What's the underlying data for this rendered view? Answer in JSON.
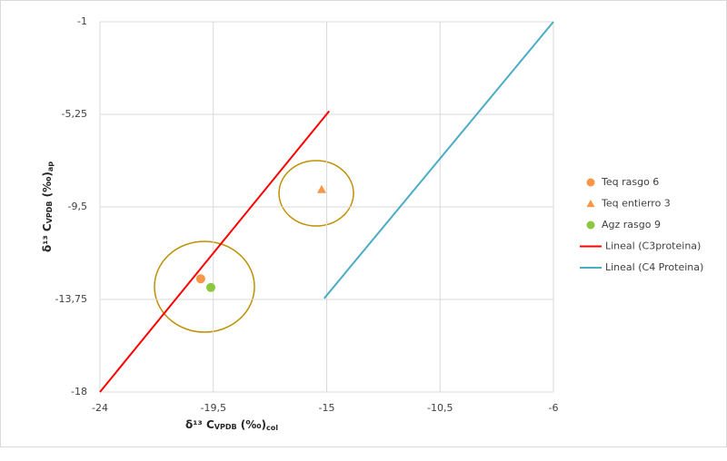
{
  "chart_data": {
    "type": "scatter",
    "x_label": {
      "main": "δ¹³ C",
      "sub1": "VPDB",
      "mid": " (‰)",
      "sub2": "col"
    },
    "y_label": {
      "main": "δ¹³ C",
      "sub1": "VPDB",
      "mid": " (‰)",
      "sub2": "ap"
    },
    "xlim": [
      -24,
      -6
    ],
    "xticks": [
      -24,
      {
        "value": -19.5,
        "label": "-19,5"
      },
      -15,
      {
        "value": -10.5,
        "label": "-10,5"
      },
      -6
    ],
    "ylim": [
      -18,
      -1
    ],
    "yticks": [
      -18,
      {
        "value": -13.75,
        "label": "-13,75"
      },
      {
        "value": -9.5,
        "label": "-9,5"
      },
      {
        "value": -5.25,
        "label": "-5,25"
      },
      -1
    ],
    "grid": true,
    "series": [
      {
        "name": "Teq rasgo 6",
        "color": "#f79646",
        "marker": "circle",
        "x": [
          -20.0
        ],
        "values": [
          -12.8
        ]
      },
      {
        "name": "Teq entierro 3",
        "color": "#f79646",
        "marker": "triangle",
        "x": [
          -15.2
        ],
        "values": [
          -8.7
        ]
      },
      {
        "name": "Agz rasgo 9",
        "color": "#8dc63f",
        "marker": "circle",
        "x": [
          -19.6
        ],
        "values": [
          -13.2
        ]
      },
      {
        "name": "Lineal (C3proteina)",
        "color": "#ff0000",
        "marker": "line",
        "x": [
          -24,
          -14.9
        ],
        "values": [
          -18,
          -5.1
        ]
      },
      {
        "name": "Lineal (C4 Proteina)",
        "color": "#4bacc6",
        "marker": "line",
        "x": [
          -15.1,
          -6
        ],
        "values": [
          -13.7,
          -1
        ]
      }
    ]
  }
}
